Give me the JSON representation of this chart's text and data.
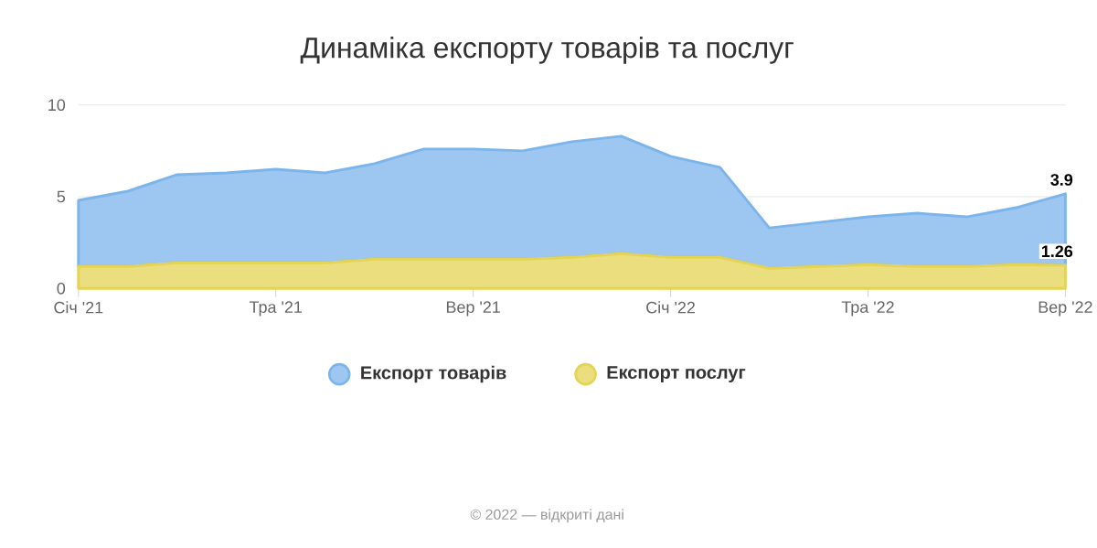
{
  "chart_data": {
    "type": "area",
    "title": "Динаміка експорту товарів та послуг",
    "categories": [
      "Січ '21",
      null,
      null,
      null,
      "Тра '21",
      null,
      null,
      null,
      "Вер '21",
      null,
      null,
      null,
      "Січ '22",
      null,
      null,
      null,
      "Тра '22",
      null,
      null,
      null,
      "Вер '22"
    ],
    "series": [
      {
        "name": "Експорт послуг",
        "color": "#e4d354",
        "values": [
          1.2,
          1.2,
          1.4,
          1.4,
          1.4,
          1.4,
          1.6,
          1.6,
          1.6,
          1.6,
          1.7,
          1.9,
          1.7,
          1.7,
          1.1,
          1.2,
          1.3,
          1.2,
          1.2,
          1.3,
          1.26
        ],
        "value_labels": [
          null,
          null,
          null,
          null,
          null,
          null,
          null,
          null,
          null,
          null,
          null,
          null,
          null,
          null,
          null,
          null,
          null,
          null,
          null,
          null,
          "1.26"
        ]
      },
      {
        "name": "Експорт товарів",
        "color": "#7cb5ec",
        "values": [
          3.6,
          4.1,
          4.8,
          4.9,
          5.1,
          4.9,
          5.2,
          6.0,
          6.0,
          5.9,
          6.3,
          6.4,
          5.5,
          4.9,
          2.2,
          2.4,
          2.6,
          2.9,
          2.7,
          3.1,
          3.9
        ],
        "value_labels": [
          null,
          null,
          null,
          null,
          null,
          null,
          null,
          null,
          null,
          null,
          null,
          null,
          null,
          null,
          null,
          null,
          null,
          null,
          null,
          null,
          "3.9"
        ]
      }
    ],
    "stacked": true,
    "ylim": [
      0,
      10
    ],
    "yticks": [
      0,
      5,
      10
    ],
    "grid": "y",
    "legend": "bottom",
    "marker": "none",
    "annotations": [
      "© 2022 — відкриті дані"
    ]
  }
}
